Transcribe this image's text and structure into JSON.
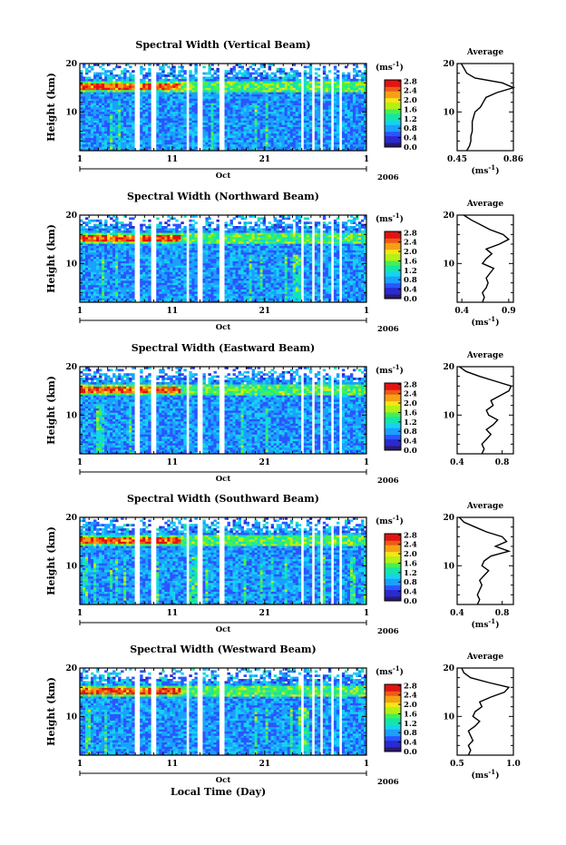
{
  "figure": {
    "xlabel": "Local Time (Day)",
    "colorbar_unit": "(ms",
    "colorbar_unit_exp": "-1",
    "colorbar_unit_close": ")",
    "colorbar_ticks": [
      "0.0",
      "0.4",
      "0.8",
      "1.2",
      "1.6",
      "2.0",
      "2.4",
      "2.8"
    ],
    "year_label": "2006",
    "month_label": "Oct",
    "avg_title": "Average",
    "avg_unit": "(ms",
    "avg_unit_exp": "-1",
    "avg_unit_close": ")",
    "ylabel": "Height (km)",
    "ytick_labels": [
      "10",
      "20"
    ],
    "xtick_labels": [
      "1",
      "11",
      "21",
      "1"
    ]
  },
  "colors": {
    "colormap": [
      "#2a1a6e",
      "#2a2ad0",
      "#2a55ff",
      "#1aa0ff",
      "#16d2f0",
      "#14e6a8",
      "#46f052",
      "#b4f014",
      "#f5e614",
      "#f5a014",
      "#f05a14",
      "#e01414"
    ]
  },
  "chart_data": [
    {
      "type": "heatmap",
      "title": "Spectral Width (Vertical Beam)",
      "xlabel": "",
      "ylabel": "Height (km)",
      "xlim": [
        1,
        32
      ],
      "ylim": [
        2,
        20
      ],
      "clim": [
        0.0,
        3.0
      ],
      "data_gaps_day": [
        [
          7.0,
          7.6
        ],
        [
          8.6,
          9.2
        ],
        [
          12.5,
          12.9
        ],
        [
          13.6,
          14.3
        ],
        [
          16.0,
          16.6
        ],
        [
          25.0,
          25.3
        ],
        [
          26.1,
          26.4
        ],
        [
          27.0,
          27.4
        ],
        [
          28.2,
          28.5
        ],
        [
          29.0,
          29.2
        ]
      ],
      "profile": {
        "title": "Average",
        "xlabel": "(ms-1)",
        "xlim": [
          0.45,
          0.86
        ],
        "xtick_labels": [
          "0.45",
          "0.86"
        ],
        "height_km": [
          2,
          3,
          4,
          5,
          6,
          7,
          8,
          9,
          10,
          11,
          12,
          13,
          14,
          15,
          16,
          17,
          18,
          19,
          20
        ],
        "value_ms": [
          0.52,
          0.54,
          0.55,
          0.55,
          0.56,
          0.56,
          0.56,
          0.57,
          0.58,
          0.62,
          0.64,
          0.66,
          0.74,
          0.86,
          0.78,
          0.58,
          0.52,
          0.5,
          0.48
        ]
      }
    },
    {
      "type": "heatmap",
      "title": "Spectral Width (Northward Beam)",
      "xlabel": "",
      "ylabel": "Height (km)",
      "xlim": [
        1,
        32
      ],
      "ylim": [
        2,
        20
      ],
      "clim": [
        0.0,
        3.0
      ],
      "data_gaps_day": [
        [
          7.0,
          7.6
        ],
        [
          8.6,
          9.2
        ],
        [
          12.5,
          12.9
        ],
        [
          13.6,
          14.3
        ],
        [
          16.0,
          16.6
        ],
        [
          25.0,
          25.3
        ],
        [
          26.1,
          26.4
        ],
        [
          27.0,
          27.4
        ],
        [
          28.2,
          28.5
        ],
        [
          29.0,
          29.2
        ]
      ],
      "profile": {
        "title": "Average",
        "xlabel": "(ms-1)",
        "xlim": [
          0.35,
          0.95
        ],
        "xtick_labels": [
          "0.4",
          "0.9"
        ],
        "height_km": [
          2,
          3,
          4,
          5,
          6,
          7,
          8,
          9,
          10,
          11,
          12,
          13,
          14,
          15,
          16,
          17,
          18,
          19,
          20
        ],
        "value_ms": [
          0.62,
          0.64,
          0.62,
          0.66,
          0.68,
          0.66,
          0.7,
          0.74,
          0.62,
          0.66,
          0.72,
          0.66,
          0.8,
          0.9,
          0.84,
          0.7,
          0.6,
          0.5,
          0.42
        ]
      }
    },
    {
      "type": "heatmap",
      "title": "Spectral Width (Eastward Beam)",
      "xlabel": "",
      "ylabel": "Height (km)",
      "xlim": [
        1,
        32
      ],
      "ylim": [
        2,
        20
      ],
      "clim": [
        0.0,
        3.0
      ],
      "data_gaps_day": [
        [
          7.0,
          7.6
        ],
        [
          8.6,
          9.2
        ],
        [
          12.5,
          12.9
        ],
        [
          13.6,
          14.3
        ],
        [
          16.0,
          16.6
        ],
        [
          25.0,
          25.3
        ],
        [
          26.1,
          26.4
        ],
        [
          27.0,
          27.4
        ],
        [
          28.2,
          28.5
        ],
        [
          29.0,
          29.2
        ]
      ],
      "profile": {
        "title": "Average",
        "xlabel": "",
        "xlim": [
          0.4,
          0.9
        ],
        "xtick_labels": [
          "0.4",
          "0.8"
        ],
        "height_km": [
          2,
          3,
          4,
          5,
          6,
          7,
          8,
          9,
          10,
          11,
          12,
          13,
          14,
          15,
          16,
          17,
          18,
          19,
          20
        ],
        "value_ms": [
          0.62,
          0.64,
          0.62,
          0.66,
          0.7,
          0.66,
          0.72,
          0.76,
          0.68,
          0.66,
          0.72,
          0.7,
          0.78,
          0.86,
          0.88,
          0.74,
          0.6,
          0.48,
          0.42
        ]
      }
    },
    {
      "type": "heatmap",
      "title": "Spectral Width (Southward Beam)",
      "xlabel": "",
      "ylabel": "Height (km)",
      "xlim": [
        1,
        32
      ],
      "ylim": [
        2,
        20
      ],
      "clim": [
        0.0,
        3.0
      ],
      "data_gaps_day": [
        [
          7.0,
          7.6
        ],
        [
          8.6,
          9.2
        ],
        [
          12.5,
          12.9
        ],
        [
          13.6,
          14.3
        ],
        [
          16.0,
          16.6
        ],
        [
          25.0,
          25.3
        ],
        [
          26.1,
          26.4
        ],
        [
          27.0,
          27.4
        ],
        [
          28.2,
          28.5
        ],
        [
          29.0,
          29.2
        ]
      ],
      "profile": {
        "title": "Average",
        "xlabel": "(ms-1)",
        "xlim": [
          0.4,
          0.9
        ],
        "xtick_labels": [
          "0.4",
          "0.8"
        ],
        "height_km": [
          2,
          3,
          4,
          5,
          6,
          7,
          8,
          9,
          10,
          11,
          12,
          13,
          14,
          15,
          16,
          17,
          18,
          19,
          20
        ],
        "value_ms": [
          0.58,
          0.6,
          0.58,
          0.6,
          0.62,
          0.6,
          0.64,
          0.68,
          0.62,
          0.64,
          0.7,
          0.86,
          0.74,
          0.84,
          0.8,
          0.66,
          0.56,
          0.46,
          0.42
        ]
      }
    },
    {
      "type": "heatmap",
      "title": "Spectral Width (Westward Beam)",
      "xlabel": "Local Time (Day)",
      "ylabel": "Height (km)",
      "xlim": [
        1,
        32
      ],
      "ylim": [
        2,
        20
      ],
      "clim": [
        0.0,
        3.0
      ],
      "data_gaps_day": [
        [
          7.0,
          7.6
        ],
        [
          8.6,
          9.2
        ],
        [
          12.5,
          12.9
        ],
        [
          13.6,
          14.3
        ],
        [
          16.0,
          16.6
        ],
        [
          25.0,
          25.3
        ],
        [
          26.1,
          26.4
        ],
        [
          27.0,
          27.4
        ],
        [
          28.2,
          28.5
        ],
        [
          29.0,
          29.2
        ]
      ],
      "profile": {
        "title": "Average",
        "xlabel": "(ms-1)",
        "xlim": [
          0.5,
          1.0
        ],
        "xtick_labels": [
          "0.5",
          "1.0"
        ],
        "height_km": [
          2,
          3,
          4,
          5,
          6,
          7,
          8,
          9,
          10,
          11,
          12,
          13,
          14,
          15,
          16,
          17,
          18,
          19,
          20
        ],
        "value_ms": [
          0.6,
          0.62,
          0.6,
          0.64,
          0.62,
          0.6,
          0.66,
          0.7,
          0.64,
          0.66,
          0.72,
          0.7,
          0.8,
          0.92,
          0.96,
          0.78,
          0.62,
          0.56,
          0.54
        ]
      }
    }
  ]
}
